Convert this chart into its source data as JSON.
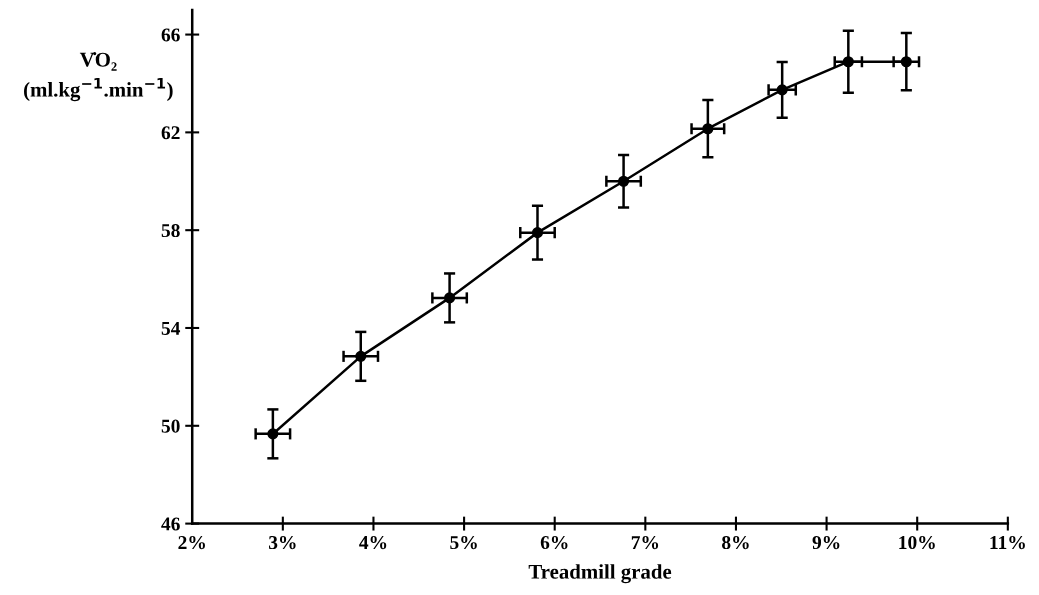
{
  "chart_data": {
    "type": "line",
    "xlabel": "Treadmill grade",
    "ylabel": "V̇O₂\n(ml.kg$^{−1}$.min$^{−1}$)",
    "x": [
      2.89,
      3.86,
      4.84,
      5.81,
      6.76,
      7.69,
      8.51,
      9.24,
      9.88
    ],
    "series": [
      {
        "color": "#000000",
        "values": [
          49.67,
          52.84,
          55.23,
          57.9,
          60.0,
          62.15,
          63.74,
          64.89,
          64.89
        ],
        "errors": [
          1.0,
          1.0,
          1.0,
          1.1,
          1.07,
          1.17,
          1.14,
          1.27,
          1.17
        ],
        "xerrors": [
          0.19,
          0.19,
          0.19,
          0.19,
          0.19,
          0.18,
          0.15,
          0.15,
          0.14
        ]
      }
    ],
    "xlim": [
      2,
      11
    ],
    "ylim": [
      46,
      67
    ],
    "xticks": [
      {
        "value": 2,
        "label": "2%"
      },
      {
        "value": 3,
        "label": "3%"
      },
      {
        "value": 4,
        "label": "4%"
      },
      {
        "value": 5,
        "label": "5%"
      },
      {
        "value": 6,
        "label": "6%"
      },
      {
        "value": 7,
        "label": "7%"
      },
      {
        "value": 8,
        "label": "8%"
      },
      {
        "value": 9,
        "label": "9%"
      },
      {
        "value": 10,
        "label": "10%"
      },
      {
        "value": 11,
        "label": "11%"
      }
    ],
    "yticks": [
      46,
      50,
      54,
      58,
      62,
      66
    ],
    "marker": "circle",
    "line_style": "solid",
    "grid": false
  }
}
